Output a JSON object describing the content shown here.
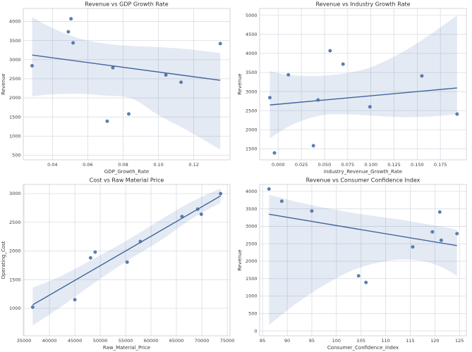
{
  "figure": {
    "background": "#ffffff",
    "layout": "2x2-grid"
  },
  "palette": {
    "point_color": "#4c72b0",
    "point_edge": "#3b5c93",
    "line_color": "#41659c",
    "band_color": "#4c72b0",
    "band_opacity": 0.15,
    "grid_color": "#d9dde5",
    "spine_color": "#cdd2da",
    "title_color": "#2e2e2e",
    "tick_color": "#3d3d3d",
    "label_color": "#3a3a3a"
  },
  "chart_data": [
    {
      "type": "scatter",
      "id": "revenue-vs-gdp-growth-rate",
      "title": "Revenue vs GDP Growth Rate",
      "xlabel": "GDP_Growth_Rate",
      "ylabel": "Revenue",
      "xlim": [
        0.0235,
        0.1405
      ],
      "ylim": [
        380,
        4340
      ],
      "grid": true,
      "legend_position": "none",
      "xticks": {
        "values": [
          0.04,
          0.06,
          0.08,
          0.1,
          0.12
        ],
        "labels": [
          "0.04",
          "0.06",
          "0.08",
          "0.10",
          "0.12"
        ]
      },
      "yticks": {
        "values": [
          500,
          1000,
          1500,
          2000,
          2500,
          3000,
          3500,
          4000
        ],
        "labels": [
          "500",
          "1000",
          "1500",
          "2000",
          "2500",
          "3000",
          "3500",
          "4000"
        ]
      },
      "points": [
        [
          0.0285,
          2840
        ],
        [
          0.049,
          3730
        ],
        [
          0.0505,
          4070
        ],
        [
          0.0517,
          3440
        ],
        [
          0.071,
          1390
        ],
        [
          0.0742,
          2790
        ],
        [
          0.0832,
          1580
        ],
        [
          0.1042,
          2600
        ],
        [
          0.1128,
          2410
        ],
        [
          0.135,
          3420
        ]
      ],
      "regression_line": {
        "x": [
          0.0285,
          0.135
        ],
        "y": [
          3120,
          2460
        ]
      },
      "confidence_band": {
        "x": [
          0.0285,
          0.04,
          0.055,
          0.07,
          0.085,
          0.1,
          0.1175,
          0.135
        ],
        "upper": [
          4110,
          3830,
          3560,
          3420,
          3360,
          3330,
          3270,
          3170
        ],
        "lower": [
          2040,
          2090,
          2105,
          2060,
          1980,
          1550,
          1120,
          650
        ]
      }
    },
    {
      "type": "scatter",
      "id": "revenue-vs-industry-growth-rate",
      "title": "Revenue vs Industry Growth Rate",
      "xlabel": "Industry_Revenue_Growth_Rate",
      "ylabel": "Revenue",
      "xlim": [
        -0.02,
        0.203
      ],
      "ylim": [
        1210,
        5180
      ],
      "grid": true,
      "legend_position": "none",
      "xticks": {
        "values": [
          0.0,
          0.025,
          0.05,
          0.075,
          0.1,
          0.125,
          0.15,
          0.175
        ],
        "labels": [
          "0.000",
          "0.025",
          "0.050",
          "0.075",
          "0.100",
          "0.125",
          "0.150",
          "0.175"
        ]
      },
      "yticks": {
        "values": [
          1500,
          2000,
          2500,
          3000,
          3500,
          4000,
          4500,
          5000
        ],
        "labels": [
          "1500",
          "2000",
          "2500",
          "3000",
          "3500",
          "4000",
          "4500",
          "5000"
        ]
      },
      "points": [
        [
          -0.009,
          2840
        ],
        [
          -0.004,
          1390
        ],
        [
          0.011,
          3440
        ],
        [
          0.038,
          1580
        ],
        [
          0.043,
          2780
        ],
        [
          0.056,
          4070
        ],
        [
          0.07,
          3720
        ],
        [
          0.099,
          2600
        ],
        [
          0.155,
          3410
        ],
        [
          0.193,
          2410
        ]
      ],
      "regression_line": {
        "x": [
          -0.009,
          0.193
        ],
        "y": [
          2648,
          3095
        ]
      },
      "confidence_band": {
        "x": [
          -0.009,
          0.005,
          0.025,
          0.05,
          0.075,
          0.1,
          0.13,
          0.16,
          0.193
        ],
        "upper": [
          3540,
          3460,
          3410,
          3420,
          3490,
          3640,
          3980,
          4430,
          5000
        ],
        "lower": [
          1760,
          2000,
          2230,
          2390,
          2400,
          2370,
          2330,
          2340,
          2400
        ]
      }
    },
    {
      "type": "scatter",
      "id": "cost-vs-raw-material-price",
      "title": "Cost vs Raw Material Price",
      "xlabel": "Raw_Material_Price",
      "ylabel": "Operating_Cost",
      "xlim": [
        34850,
        75550
      ],
      "ylim": [
        520,
        3160
      ],
      "grid": true,
      "legend_position": "none",
      "xticks": {
        "values": [
          35000,
          40000,
          45000,
          50000,
          55000,
          60000,
          65000,
          70000,
          75000
        ],
        "labels": [
          "35000",
          "40000",
          "45000",
          "50000",
          "55000",
          "60000",
          "65000",
          "70000",
          "75000"
        ]
      },
      "yticks": {
        "values": [
          1000,
          1500,
          2000,
          2500,
          3000
        ],
        "labels": [
          "1000",
          "1500",
          "2000",
          "2500",
          "3000"
        ]
      },
      "points": [
        [
          36700,
          1020
        ],
        [
          45000,
          1150
        ],
        [
          48100,
          1880
        ],
        [
          49000,
          1980
        ],
        [
          55300,
          1805
        ],
        [
          57900,
          2165
        ],
        [
          66100,
          2600
        ],
        [
          69200,
          2730
        ],
        [
          69900,
          2640
        ],
        [
          73700,
          3000
        ]
      ],
      "regression_line": {
        "x": [
          36700,
          73700
        ],
        "y": [
          1060,
          2960
        ]
      },
      "confidence_band": {
        "x": [
          36700,
          42000,
          48000,
          55000,
          62000,
          68000,
          73700
        ],
        "upper": [
          1360,
          1550,
          1830,
          2170,
          2550,
          2860,
          3090
        ],
        "lower": [
          700,
          1010,
          1390,
          1810,
          2190,
          2560,
          2840
        ]
      }
    },
    {
      "type": "scatter",
      "id": "revenue-vs-consumer-confidence-index",
      "title": "Revenue vs Consumer Confidence Index",
      "xlabel": "Consumer_Confidence_Index",
      "ylabel": "Revenue",
      "xlim": [
        84.4,
        126.4
      ],
      "ylim": [
        -140,
        4200
      ],
      "grid": true,
      "legend_position": "none",
      "xticks": {
        "values": [
          85,
          90,
          95,
          100,
          105,
          110,
          115,
          120,
          125
        ],
        "labels": [
          "85",
          "90",
          "95",
          "100",
          "105",
          "110",
          "115",
          "120",
          "125"
        ]
      },
      "yticks": {
        "values": [
          0,
          500,
          1000,
          1500,
          2000,
          2500,
          3000,
          3500,
          4000
        ],
        "labels": [
          "0",
          "500",
          "1000",
          "1500",
          "2000",
          "2500",
          "3000",
          "3500",
          "4000"
        ]
      },
      "points": [
        [
          86.3,
          4070
        ],
        [
          88.9,
          3720
        ],
        [
          95.0,
          3440
        ],
        [
          104.5,
          1580
        ],
        [
          106.0,
          1390
        ],
        [
          115.5,
          2410
        ],
        [
          119.5,
          2840
        ],
        [
          121.0,
          3410
        ],
        [
          121.3,
          2600
        ],
        [
          124.5,
          2790
        ]
      ],
      "regression_line": {
        "x": [
          86.3,
          124.5
        ],
        "y": [
          3345,
          2445
        ]
      },
      "confidence_band": {
        "x": [
          86.3,
          92,
          98,
          104,
          110,
          114,
          118,
          121.5,
          124.5
        ],
        "upper": [
          3910,
          3700,
          3520,
          3370,
          3250,
          3170,
          3070,
          2990,
          2900
        ],
        "lower": [
          170,
          800,
          1350,
          1780,
          2000,
          2050,
          1990,
          1820,
          1580
        ]
      }
    }
  ]
}
